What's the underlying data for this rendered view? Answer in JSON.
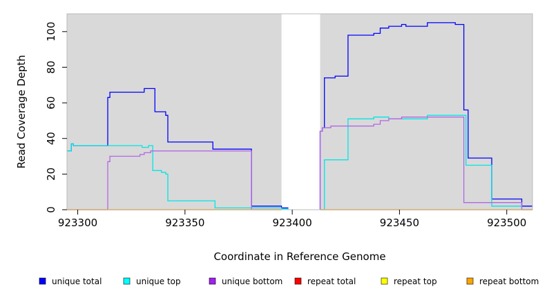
{
  "chart_data": {
    "type": "line",
    "title": "",
    "xlabel": "Coordinate in Reference Genome",
    "ylabel": "Read Coverage Depth",
    "xlim": [
      923295,
      923512
    ],
    "ylim": [
      0,
      110
    ],
    "x_ticks": [
      "923300",
      "923350",
      "923400",
      "923450",
      "923500"
    ],
    "x_tick_values": [
      923300,
      923350,
      923400,
      923450,
      923500
    ],
    "y_ticks": [
      "0",
      "20",
      "40",
      "60",
      "80",
      "100"
    ],
    "y_tick_values": [
      0,
      20,
      40,
      60,
      80,
      100
    ],
    "background_color": "#d9d9d9",
    "grid": false,
    "uncovered_region": [
      923395,
      923413
    ],
    "legend_position": "bottom",
    "series": [
      {
        "name": "unique total",
        "color": "#0000ff",
        "x": [
          923295,
          923297,
          923297,
          923298,
          923298,
          923314,
          923314,
          923315,
          923315,
          923331,
          923331,
          923336,
          923336,
          923341,
          923341,
          923342,
          923342,
          923363,
          923363,
          923381,
          923381,
          923395,
          923395,
          923398,
          923398
        ],
        "y": [
          33,
          33,
          37,
          37,
          36,
          36,
          63,
          63,
          66,
          66,
          68,
          68,
          55,
          55,
          53,
          53,
          38,
          38,
          34,
          34,
          2,
          2,
          1,
          1,
          0
        ]
      },
      {
        "name": "unique total",
        "color": "#0000ff",
        "x": [
          923413,
          923413,
          923414,
          923414,
          923415,
          923415,
          923420,
          923420,
          923426,
          923426,
          923438,
          923438,
          923441,
          923441,
          923445,
          923445,
          923451,
          923451,
          923453,
          923453,
          923463,
          923463,
          923476,
          923476,
          923480,
          923480,
          923482,
          923482,
          923493,
          923493,
          923507,
          923507,
          923512
        ],
        "y": [
          0,
          44,
          44,
          46,
          46,
          74,
          74,
          75,
          75,
          98,
          98,
          99,
          99,
          102,
          102,
          103,
          103,
          104,
          104,
          103,
          103,
          105,
          105,
          104,
          104,
          56,
          56,
          29,
          29,
          6,
          6,
          2,
          2
        ]
      },
      {
        "name": "unique top",
        "color": "#00e5e5",
        "x": [
          923295,
          923297,
          923297,
          923298,
          923298,
          923330,
          923330,
          923333,
          923333,
          923335,
          923335,
          923339,
          923339,
          923341,
          923341,
          923342,
          923342,
          923364,
          923364,
          923395,
          923395,
          923398,
          923398
        ],
        "y": [
          33,
          33,
          37,
          37,
          36,
          36,
          35,
          35,
          36,
          36,
          22,
          22,
          21,
          21,
          20,
          20,
          5,
          5,
          1,
          1,
          0.5,
          0.5,
          0
        ]
      },
      {
        "name": "unique top",
        "color": "#00e5e5",
        "x": [
          923413,
          923415,
          923415,
          923426,
          923426,
          923438,
          923438,
          923445,
          923445,
          923463,
          923463,
          923481,
          923481,
          923493,
          923493,
          923507,
          923507,
          923512
        ],
        "y": [
          0,
          0,
          28,
          28,
          51,
          51,
          52,
          52,
          51,
          51,
          53,
          53,
          25,
          25,
          2,
          2,
          0,
          0
        ]
      },
      {
        "name": "unique bottom",
        "color": "#b266e5",
        "x": [
          923295,
          923314,
          923314,
          923315,
          923315,
          923329,
          923329,
          923331,
          923331,
          923334,
          923334,
          923381,
          923381,
          923395
        ],
        "y": [
          0,
          0,
          27,
          27,
          30,
          30,
          31,
          31,
          32,
          32,
          33,
          33,
          0,
          0
        ]
      },
      {
        "name": "unique bottom",
        "color": "#b266e5",
        "x": [
          923413,
          923413,
          923414,
          923414,
          923415,
          923415,
          923418,
          923418,
          923438,
          923438,
          923441,
          923441,
          923445,
          923445,
          923451,
          923451,
          923463,
          923463,
          923480,
          923480,
          923507,
          923507,
          923512
        ],
        "y": [
          0,
          44,
          44,
          46,
          46,
          46,
          46,
          47,
          47,
          48,
          48,
          50,
          50,
          51,
          51,
          52,
          52,
          52,
          52,
          4,
          4,
          0,
          0
        ]
      },
      {
        "name": "repeat total",
        "color": "#ff0000",
        "x": [
          923295,
          923395,
          923395,
          923413,
          923413,
          923512
        ],
        "y": [
          0,
          0,
          null,
          null,
          0,
          0
        ]
      },
      {
        "name": "repeat top",
        "color": "#ffff00",
        "x": [
          923295,
          923395,
          923395,
          923413,
          923413,
          923512
        ],
        "y": [
          0,
          0,
          null,
          null,
          0,
          0
        ]
      },
      {
        "name": "repeat bottom",
        "color": "#ffa500",
        "x": [
          923295,
          923395,
          923395,
          923413,
          923413,
          923512
        ],
        "y": [
          0,
          0,
          null,
          null,
          0,
          0
        ]
      }
    ],
    "legend": [
      {
        "label": "unique total",
        "color": "#0000ff"
      },
      {
        "label": "unique top",
        "color": "#00ffff"
      },
      {
        "label": "unique bottom",
        "color": "#a020f0"
      },
      {
        "label": "repeat total",
        "color": "#ff0000"
      },
      {
        "label": "repeat top",
        "color": "#ffff00"
      },
      {
        "label": "repeat bottom",
        "color": "#ffa500"
      }
    ]
  }
}
